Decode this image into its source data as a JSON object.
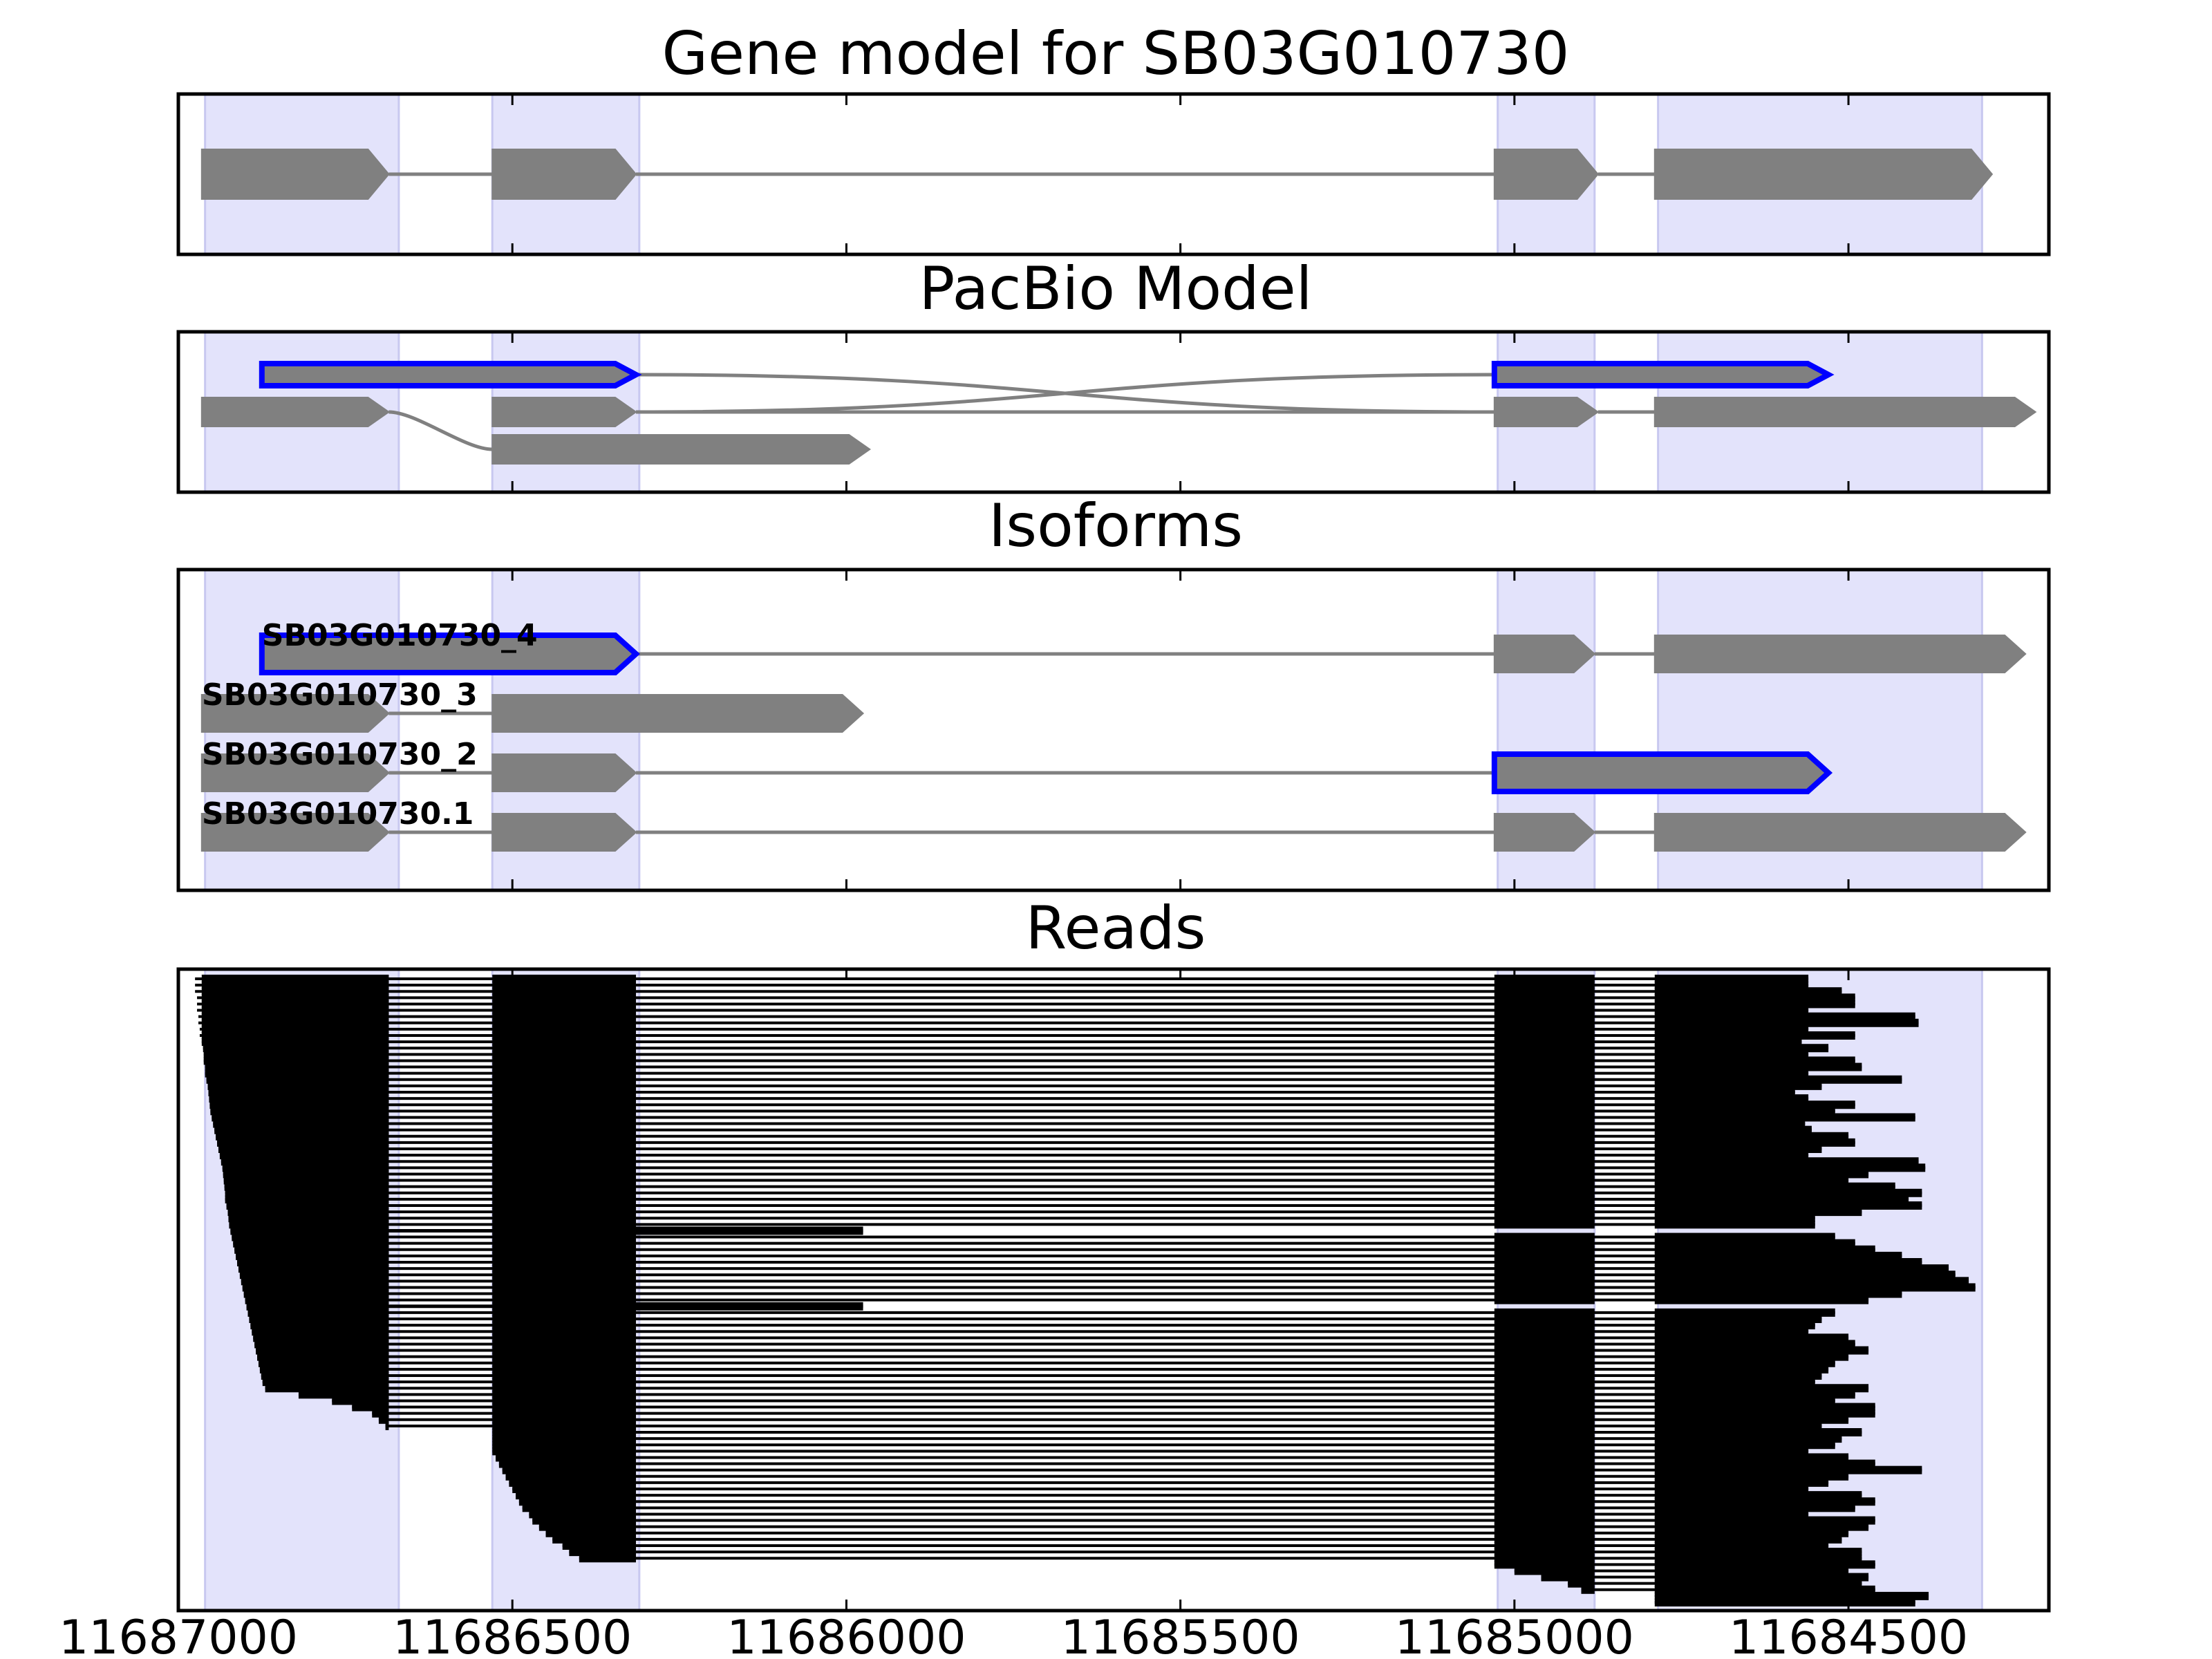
{
  "colors": {
    "exon_fill": "#808080",
    "highlight_edge": "#0000ff",
    "intron_line": "#808080",
    "read_color": "#000000",
    "region_shade": "#e3e3fb",
    "axis": "#000000"
  },
  "x_axis": {
    "min": 11687000,
    "max": 11684200,
    "reversed": true,
    "ticks": [
      11687000,
      11686500,
      11686000,
      11685500,
      11685000,
      11684500
    ],
    "tick_labels": [
      "11687000",
      "11686500",
      "11686000",
      "11685500",
      "11685000",
      "11684500"
    ]
  },
  "shaded_regions": [
    [
      11686960,
      11686670
    ],
    [
      11686530,
      11686310
    ],
    [
      11685025,
      11684880
    ],
    [
      11684785,
      11684300
    ]
  ],
  "panels": [
    {
      "id": "gene_model",
      "title": "Gene model for SB03G010730",
      "transcripts": [
        {
          "label": "",
          "exons": [
            [
              11686965,
              11686685
            ],
            [
              11686530,
              11686315
            ],
            [
              11685030,
              11684875
            ],
            [
              11684790,
              11684285
            ]
          ],
          "highlight": []
        }
      ]
    },
    {
      "id": "pacbio_model",
      "title": "PacBio Model",
      "transcripts": [
        {
          "label": "",
          "exons": [
            [
              11686875,
              11686315
            ],
            [
              11685030,
              11684530
            ]
          ],
          "highlight": [
            0,
            1
          ]
        },
        {
          "label": "",
          "exons": [
            [
              11686965,
              11686685
            ],
            [
              11686530,
              11686315
            ],
            [
              11685030,
              11684875
            ],
            [
              11684790,
              11684220
            ]
          ],
          "highlight": []
        },
        {
          "label": "",
          "exons": [
            [
              11686530,
              11685965
            ]
          ],
          "highlight": []
        }
      ]
    },
    {
      "id": "isoforms",
      "title": "Isoforms",
      "transcripts": [
        {
          "label": "SB03G010730_4",
          "exons": [
            [
              11686875,
              11686315
            ],
            [
              11685030,
              11684880
            ],
            [
              11684790,
              11684235
            ]
          ],
          "highlight": [
            0
          ]
        },
        {
          "label": "SB03G010730_3",
          "exons": [
            [
              11686965,
              11686685
            ],
            [
              11686530,
              11685975
            ]
          ],
          "highlight": []
        },
        {
          "label": "SB03G010730_2",
          "exons": [
            [
              11686965,
              11686685
            ],
            [
              11686530,
              11686315
            ],
            [
              11685030,
              11684530
            ]
          ],
          "highlight": [
            2
          ]
        },
        {
          "label": "SB03G010730.1",
          "exons": [
            [
              11686965,
              11686685
            ],
            [
              11686530,
              11686315
            ],
            [
              11685030,
              11684880
            ],
            [
              11684790,
              11684235
            ]
          ],
          "highlight": []
        }
      ]
    },
    {
      "id": "reads",
      "title": "Reads",
      "read_count": 100,
      "read_ends_5prime": [
        11686975,
        11686975,
        11686975,
        11686972,
        11686972,
        11686972,
        11686970,
        11686970,
        11686968,
        11686968,
        11686965,
        11686963,
        11686962,
        11686962,
        11686960,
        11686960,
        11686958,
        11686956,
        11686955,
        11686954,
        11686953,
        11686952,
        11686950,
        11686948,
        11686946,
        11686944,
        11686942,
        11686940,
        11686938,
        11686936,
        11686934,
        11686933,
        11686932,
        11686931,
        11686930,
        11686930,
        11686928,
        11686926,
        11686925,
        11686924,
        11686922,
        11686920,
        11686918,
        11686916,
        11686914,
        11686912,
        11686910,
        11686908,
        11686906,
        11686904,
        11686902,
        11686900,
        11686898,
        11686896,
        11686894,
        11686892,
        11686890,
        11686888,
        11686886,
        11686884,
        11686882,
        11686880,
        11686878,
        11686876,
        11686874,
        11686870,
        11686820,
        11686770,
        11686740,
        11686710,
        11686700,
        11686690,
        11686530,
        11686530,
        11686530,
        11686530,
        11686525,
        11686520,
        11686515,
        11686510,
        11686505,
        11686500,
        11686495,
        11686490,
        11686485,
        11686475,
        11686470,
        11686460,
        11686450,
        11686440,
        11686425,
        11686415,
        11686400,
        11685030,
        11685000,
        11684960,
        11684920,
        11684900,
        11684790,
        11684790
      ],
      "read_ends_3prime": [
        11684560,
        11684560,
        11684510,
        11684490,
        11684490,
        11684560,
        11684400,
        11684395,
        11684560,
        11684490,
        11684570,
        11684530,
        11684560,
        11684490,
        11684480,
        11684560,
        11684420,
        11684540,
        11684580,
        11684560,
        11684490,
        11684520,
        11684400,
        11684565,
        11684555,
        11684500,
        11684490,
        11684540,
        11684560,
        11684395,
        11684385,
        11684470,
        11684500,
        11684430,
        11684390,
        11684410,
        11684390,
        11684480,
        11684550,
        11684550,
        11684530,
        11684520,
        11684490,
        11684460,
        11684420,
        11684390,
        11684350,
        11684340,
        11684320,
        11684310,
        11684420,
        11684470,
        11684500,
        11684520,
        11684540,
        11684550,
        11684560,
        11684500,
        11684490,
        11684470,
        11684500,
        11684520,
        11684530,
        11684540,
        11684550,
        11684470,
        11684490,
        11684520,
        11684460,
        11684460,
        11684500,
        11684540,
        11684480,
        11684510,
        11684520,
        11684560,
        11684500,
        11684460,
        11684390,
        11684500,
        11684530,
        11684560,
        11684480,
        11684460,
        11684490,
        11684560,
        11684460,
        11684470,
        11684500,
        11684510,
        11684530,
        11684480,
        11684480,
        11684460,
        11684500,
        11684470,
        11684480,
        11684460,
        11684380,
        11684400
      ],
      "read_pattern_3exon": [
        41,
        53
      ],
      "read_pattern_short3": [
        40,
        52
      ]
    }
  ]
}
